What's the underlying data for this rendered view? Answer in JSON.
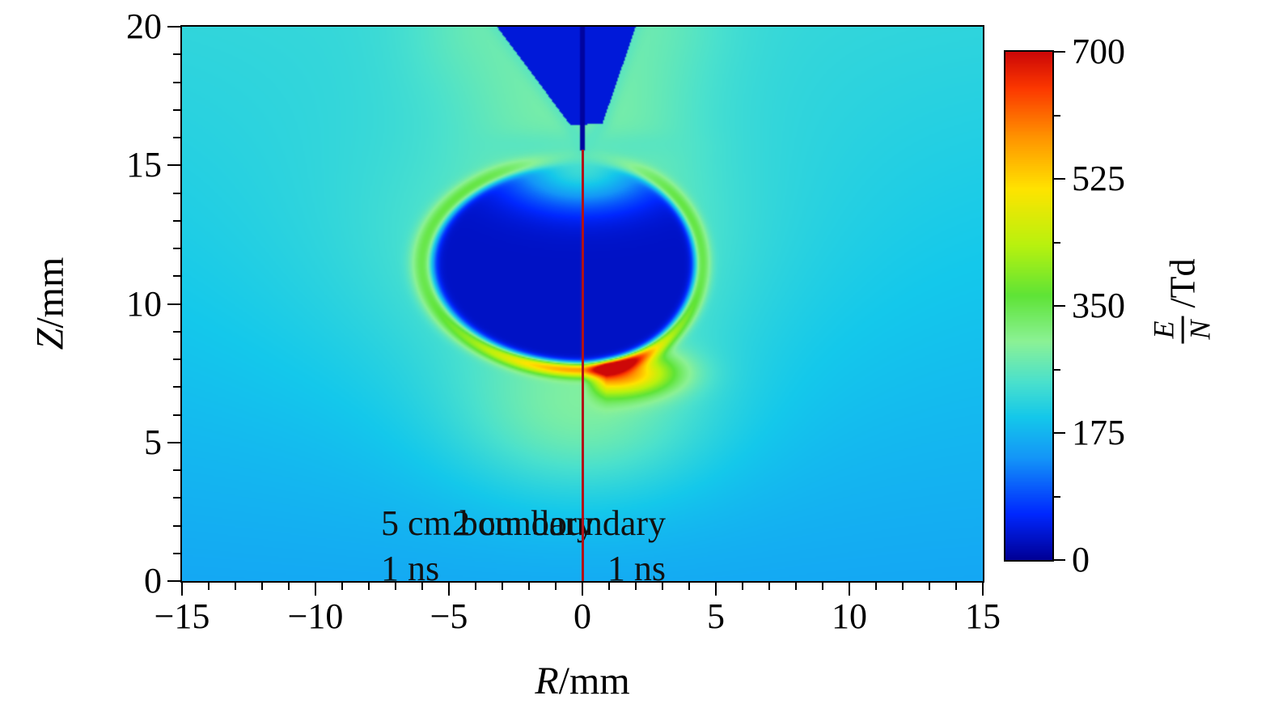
{
  "figure": {
    "background_color": "#ffffff",
    "frame_color": "#000000"
  },
  "chart_data": {
    "type": "heatmap",
    "title": "",
    "description": "Axisymmetric streamer-discharge reduced electric field E/N at t = 1 ns. Left half simulated with a 5 cm domain boundary, right half with a 2 cm boundary. Dark blue screened channel interior around (R,Z)=(0,11.5) mm, green/yellow field-enhanced rim, orange-red streamer head near (R,Z)=(1.3,7.4) mm on the right half (peak ~700 Td), needle electrode entering from top center, dark red line marking the symmetry axis R = 0.",
    "axes": {
      "x": {
        "var": "R",
        "unit": "/mm"
      },
      "y": {
        "var": "Z",
        "unit": "/mm"
      }
    },
    "xlim": [
      -15,
      15
    ],
    "ylim": [
      0,
      20
    ],
    "x_major_ticks": [
      -15,
      -10,
      -5,
      0,
      5,
      10,
      15
    ],
    "y_major_ticks": [
      0,
      5,
      10,
      15,
      20
    ],
    "minor_tick_step": 1,
    "panels": [
      {
        "region": "R < 0",
        "label": "5 cm boundary",
        "time": "1 ns"
      },
      {
        "region": "R > 0",
        "label": "2 cm boundary",
        "time": "1 ns"
      }
    ],
    "divider": {
      "x": 0,
      "color": "#b01218"
    },
    "colorbar": {
      "numerator": "E",
      "denominator": "N",
      "unit": "/Td",
      "min": 0,
      "max": 700,
      "ticks": [
        0,
        175,
        350,
        525,
        700
      ],
      "minor_ticks": [
        87.5,
        262.5,
        437.5,
        612.5
      ]
    },
    "colormap_stops": [
      [
        0.0,
        0,
        0,
        150
      ],
      [
        0.09,
        0,
        40,
        255
      ],
      [
        0.2,
        20,
        150,
        248
      ],
      [
        0.28,
        20,
        200,
        235
      ],
      [
        0.35,
        75,
        225,
        205
      ],
      [
        0.43,
        140,
        242,
        150
      ],
      [
        0.52,
        95,
        228,
        55
      ],
      [
        0.62,
        185,
        242,
        15
      ],
      [
        0.73,
        255,
        228,
        0
      ],
      [
        0.83,
        255,
        150,
        0
      ],
      [
        0.93,
        252,
        55,
        0
      ],
      [
        1.0,
        205,
        8,
        8
      ]
    ],
    "field_model": {
      "units": "Td",
      "background": {
        "base": 158,
        "z_slope": 3.0,
        "rim_follow_amp": 55,
        "rim_follow_decay": 0.9
      },
      "streamer_body": {
        "center_z": 11.45,
        "radius_left": 5.8,
        "radius_right": 4.35,
        "radius_z": 3.7,
        "interior_value": 28,
        "edge_center": 0.965,
        "edge_width": 0.018
      },
      "rim": {
        "center": 1.03,
        "width": 0.055,
        "base_amplitude": 110,
        "bottom_amplitude": 185
      },
      "head_hotspot": {
        "r": 1.25,
        "z": 7.5,
        "sigma_r": 1.5,
        "sigma_z": 0.55,
        "amplitude": 330,
        "gate_mm": 0.9
      },
      "below_glow": {
        "z": 5.8,
        "sigma_z": 2.0,
        "sigma_r": 3.3,
        "amplitude": 80
      },
      "tip_glow": {
        "z": 14.9,
        "sigma_r": 1.9,
        "sigma_z": 0.95,
        "pale_value": 245,
        "strength": 0.95
      },
      "tip_wings": {
        "r": 2.3,
        "z": 15.75,
        "sigma_r": 1.4,
        "sigma_z": 0.33,
        "pale_value": 250,
        "strength": 0.55
      },
      "electrode": {
        "body_value": 40,
        "needle_value": 6,
        "top_left_r": -3.2,
        "top_right_r": 2.0,
        "left_tip": [
          -0.45,
          16.45
        ],
        "right_tip": [
          0.75,
          16.5
        ],
        "needle_tip_z": 15.55,
        "needle_center_r": 0.0,
        "needle_half_width": 0.09,
        "halo_amplitude": 45,
        "halo_sigma": 2.2,
        "edge_glow_strength": 0.8,
        "edge_glow_width": 0.3,
        "edge_pale_value": 255
      }
    }
  }
}
